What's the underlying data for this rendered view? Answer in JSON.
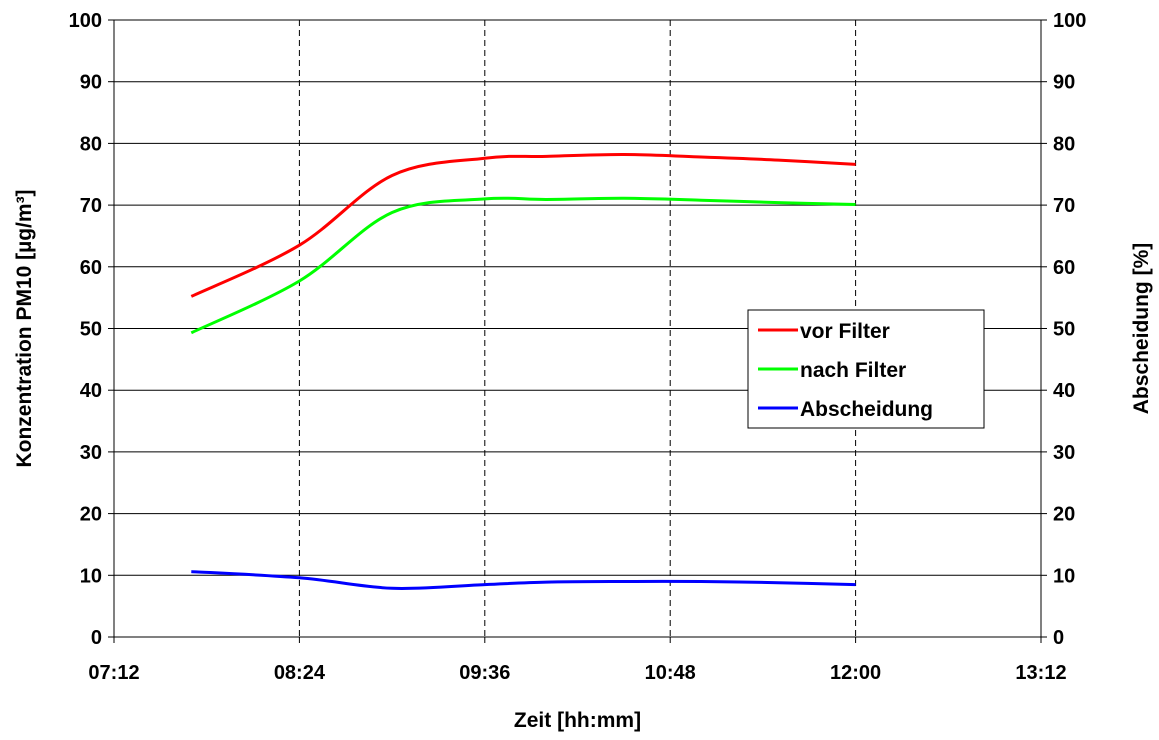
{
  "chart_data": {
    "type": "line",
    "xlabel": "Zeit [hh:mm]",
    "ylabel": "Konzentration PM10 [µg/m³]",
    "y2label": "Abscheidung [%]",
    "xlim": [
      "07:12",
      "13:12"
    ],
    "x_ticks": [
      "07:12",
      "08:24",
      "09:36",
      "10:48",
      "12:00",
      "13:12"
    ],
    "ylim": [
      0,
      100
    ],
    "y2lim": [
      0,
      100
    ],
    "y_ticks": [
      "0",
      "10",
      "20",
      "30",
      "40",
      "50",
      "60",
      "70",
      "80",
      "90",
      "100"
    ],
    "y2_ticks": [
      "0",
      "10",
      "20",
      "30",
      "40",
      "50",
      "60",
      "70",
      "80",
      "90",
      "100"
    ],
    "grid": {
      "horizontal": "solid",
      "vertical": "dashed"
    },
    "legend_position": "right",
    "series": [
      {
        "name": "vor Filter",
        "color": "#ff0000",
        "axis": "left",
        "x": [
          "07:42",
          "08:24",
          "09:00",
          "09:36",
          "10:00",
          "10:30",
          "11:00",
          "11:30",
          "12:00"
        ],
        "y": [
          55.2,
          63.5,
          74.8,
          77.6,
          77.9,
          78.2,
          77.8,
          77.3,
          76.6
        ]
      },
      {
        "name": "nach Filter",
        "color": "#00ff00",
        "axis": "left",
        "x": [
          "07:42",
          "08:24",
          "09:00",
          "09:36",
          "10:00",
          "10:30",
          "11:00",
          "11:30",
          "12:00"
        ],
        "y": [
          49.3,
          57.7,
          68.8,
          71.0,
          70.9,
          71.1,
          70.8,
          70.4,
          70.1
        ]
      },
      {
        "name": "Abscheidung",
        "color": "#0000ff",
        "axis": "right",
        "x": [
          "07:42",
          "08:24",
          "09:00",
          "09:36",
          "10:00",
          "10:30",
          "11:00",
          "11:30",
          "12:00"
        ],
        "y": [
          10.6,
          9.6,
          7.9,
          8.5,
          8.9,
          9.0,
          9.0,
          8.8,
          8.5
        ]
      }
    ]
  }
}
